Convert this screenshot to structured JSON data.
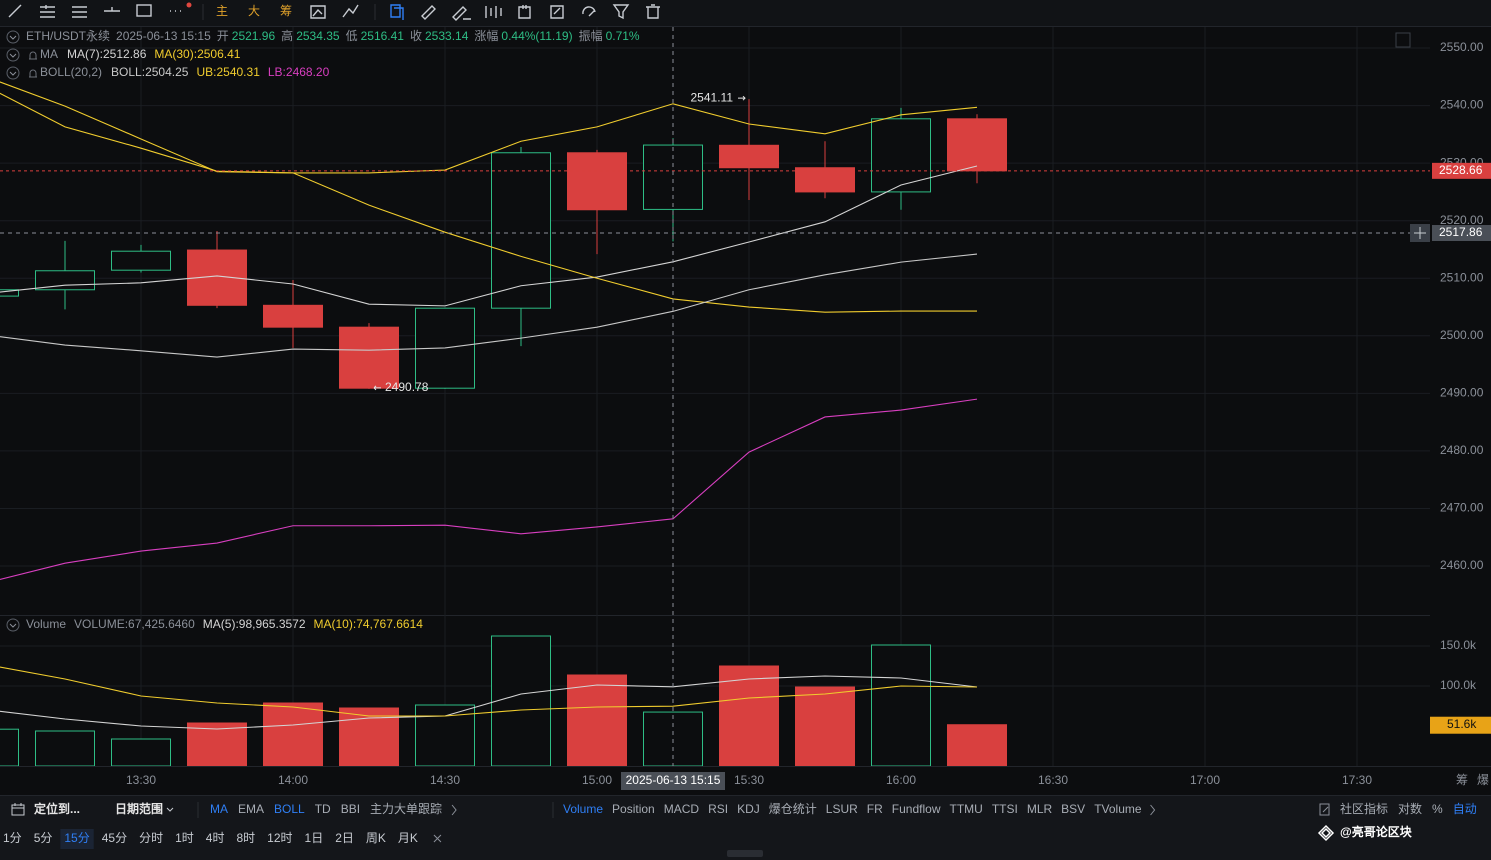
{
  "toolbar": {
    "buttons": [
      "主",
      "大",
      "筹"
    ]
  },
  "chart_data": [
    {
      "type": "candlestick",
      "symbol": "ETH/USDT永续",
      "time": "2025-06-13 15:15",
      "ohlc_labels": [
        "开",
        "高",
        "低",
        "收"
      ],
      "change_label": "涨幅",
      "change": "0.44%(11.19)",
      "amplitude_label": "振幅",
      "amplitude": "0.71%",
      "categories": [
        null,
        null,
        "13:30",
        null,
        "14:00",
        null,
        "14:30",
        null,
        "15:00",
        null,
        "15:30",
        null,
        "16:00",
        null
      ],
      "future_categories": [
        "16:30",
        "17:00",
        "17:30"
      ],
      "open": [
        2506.9,
        2508.0,
        2511.4,
        2514.9,
        2505.3,
        2501.5,
        2490.9,
        2504.8,
        2531.8,
        2521.96,
        2533.1,
        2529.2,
        2525.0,
        2537.7
      ],
      "high": [
        2508.5,
        2516.5,
        2515.8,
        2518.2,
        2509.7,
        2502.2,
        2504.9,
        2532.8,
        2532.3,
        2534.35,
        2541.11,
        2533.8,
        2539.6,
        2538.5
      ],
      "low": [
        2506.5,
        2504.6,
        2511.0,
        2504.8,
        2497.9,
        2490.78,
        2490.8,
        2498.2,
        2514.2,
        2516.41,
        2523.6,
        2523.9,
        2521.9,
        2526.5
      ],
      "close": [
        2508.0,
        2511.3,
        2514.7,
        2505.3,
        2501.5,
        2490.9,
        2504.8,
        2531.8,
        2521.9,
        2533.14,
        2529.2,
        2525.0,
        2537.7,
        2528.66
      ],
      "up_color": "#2ebd85",
      "down_color": "#d9403f",
      "ylim": [
        2451.67,
        2553.65
      ],
      "yticks": [
        {
          "value": 2460,
          "label": "2460.00"
        },
        {
          "value": 2470,
          "label": "2470.00"
        },
        {
          "value": 2480,
          "label": "2480.00"
        },
        {
          "value": 2490,
          "label": "2490.00"
        },
        {
          "value": 2500,
          "label": "2500.00"
        },
        {
          "value": 2510,
          "label": "2510.00"
        },
        {
          "value": 2520,
          "label": "2520.00"
        },
        {
          "value": 2530,
          "label": "2530.00"
        },
        {
          "value": 2540,
          "label": "2540.00"
        },
        {
          "value": 2550,
          "label": "2550.00"
        }
      ],
      "grid": true,
      "last_price": 2528.66,
      "last_price_color": "#d9403f",
      "crosshair_price": 2517.86,
      "indicators": [
        {
          "name": "MA",
          "series": [
            {
              "name": "MA(7):",
              "color": "#d4d4d4",
              "values": [
                2507.4,
                2508.8,
                2509.2,
                2510.4,
                2509.0,
                2505.5,
                2505.2,
                2508.7,
                2510.2,
                2512.86,
                2516.3,
                2519.8,
                2526.2,
                2529.5
              ]
            },
            {
              "name": "MA(30):",
              "color": "#f0cc2e",
              "values": [
                2543.1,
                2536.3,
                2532.6,
                2528.6,
                2528.3,
                2522.7,
                2518.0,
                2513.8,
                2510.0,
                2506.41,
                2505.0,
                2504.1,
                2504.3,
                2504.3
              ]
            }
          ]
        },
        {
          "name": "BOLL(20,2)",
          "series": [
            {
              "name": "BOLL:",
              "color": "#c8c8c8",
              "values": [
                2500.1,
                2498.4,
                2497.4,
                2496.3,
                2497.7,
                2497.5,
                2497.9,
                2499.6,
                2501.5,
                2504.25,
                2508.0,
                2510.6,
                2512.8,
                2514.2
              ]
            },
            {
              "name": "UB:",
              "color": "#f0cc2e",
              "values": [
                2544.8,
                2539.9,
                2534.2,
                2528.5,
                2528.3,
                2528.3,
                2528.8,
                2533.8,
                2536.3,
                2540.31,
                2536.8,
                2535.1,
                2538.4,
                2539.7
              ]
            },
            {
              "name": "LB:",
              "color": "#d83fc0",
              "legend_label": "2468.20",
              "values": [
                2457.2,
                2460.5,
                2462.6,
                2464.0,
                2467.0,
                2467.0,
                2467.1,
                2465.6,
                2466.8,
                2468.2,
                2479.8,
                2485.9,
                2487.1,
                2489.0
              ]
            }
          ]
        }
      ]
    },
    {
      "type": "bar",
      "title": "Volume",
      "series": [
        {
          "name": "VOLUME:",
          "legend_label": "67,425.6460",
          "last_label": "51.6k",
          "last_color": "#e8a317",
          "values": [
            46000,
            43750,
            33750,
            53750,
            78750,
            72500,
            76250,
            162500,
            113750,
            67425.646,
            125000,
            98750,
            151250,
            51600
          ]
        },
        {
          "name": "MA(5):",
          "legend_label": "98,965.3572",
          "color": "#d4d4d4",
          "values": [
            70000,
            58750,
            50000,
            46250,
            51250,
            60000,
            62500,
            90000,
            101250,
            98965.3572,
            108750,
            112500,
            110000,
            98750
          ]
        },
        {
          "name": "MA(10):",
          "legend_label": "74,767.6614",
          "color": "#f0cc2e",
          "values": [
            126250,
            108750,
            87500,
            78750,
            73750,
            62500,
            62500,
            70000,
            73750,
            74767.6614,
            85000,
            90000,
            100000,
            98750
          ]
        }
      ],
      "ylim": [
        0,
        187500
      ],
      "yticks": [
        {
          "value": 100000,
          "label": "100.0k"
        },
        {
          "value": 150000,
          "label": "150.0k"
        }
      ]
    }
  ],
  "side_tabs": [
    "筹",
    "爆"
  ],
  "bottom": {
    "active_color": "#2f7ff5",
    "locate": "定位到...",
    "date_range": "日期范围",
    "main_indicators": [
      {
        "label": "MA",
        "active": true
      },
      {
        "label": "EMA"
      },
      {
        "label": "BOLL",
        "active": true
      },
      {
        "label": "TD"
      },
      {
        "label": "BBI"
      },
      {
        "label": "主力大单跟踪"
      }
    ],
    "sub_indicators": [
      {
        "label": "Volume",
        "active": true
      },
      {
        "label": "Position"
      },
      {
        "label": "MACD"
      },
      {
        "label": "RSI"
      },
      {
        "label": "KDJ"
      },
      {
        "label": "爆仓统计"
      },
      {
        "label": "LSUR"
      },
      {
        "label": "FR"
      },
      {
        "label": "Fundflow"
      },
      {
        "label": "TTMU"
      },
      {
        "label": "TTSI"
      },
      {
        "label": "MLR"
      },
      {
        "label": "BSV"
      },
      {
        "label": "TVolume"
      }
    ],
    "right": [
      {
        "label": "社区指标"
      },
      {
        "label": "对数"
      },
      {
        "label": "%"
      },
      {
        "label": "自动",
        "active": true
      }
    ],
    "intervals": [
      {
        "label": "1分"
      },
      {
        "label": "5分"
      },
      {
        "label": "15分",
        "active": true
      },
      {
        "label": "45分"
      },
      {
        "label": "分时"
      },
      {
        "label": "1时"
      },
      {
        "label": "4时"
      },
      {
        "label": "8时"
      },
      {
        "label": "12时"
      },
      {
        "label": "1日"
      },
      {
        "label": "2日"
      },
      {
        "label": "周K"
      },
      {
        "label": "月K"
      }
    ],
    "watermark": "@亮哥论区块"
  }
}
